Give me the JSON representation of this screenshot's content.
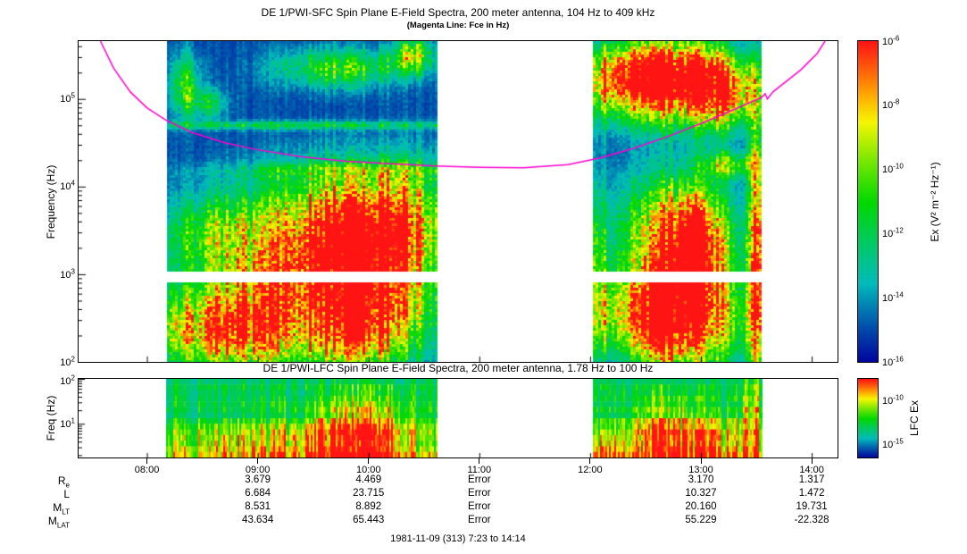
{
  "chart_data": {
    "type": "heatmap",
    "figure": "DE 1 PWI dynamic spectrogram, two stacked panels with colorbars, time ephemeris table and caption",
    "time_range_hours": [
      7.383,
      14.233
    ],
    "x_ticks": [
      "08:00",
      "09:00",
      "10:00",
      "11:00",
      "12:00",
      "13:00",
      "14:00"
    ],
    "x_tick_hours": [
      8,
      9,
      10,
      11,
      12,
      13,
      14
    ],
    "data_segments_hours": [
      [
        8.17,
        10.62
      ],
      [
        12.02,
        13.55
      ]
    ],
    "sfc_panel": {
      "title": "DE 1/PWI-SFC  Spin Plane E-Field Spectra, 200 meter antenna, 104 Hz to 409 kHz",
      "subtitle": "(Magenta Line: Fce in Hz)",
      "ylabel": "Frequency (Hz)",
      "freq_log_range": [
        2.0,
        5.66
      ],
      "ytick_exponents": [
        5,
        4,
        3,
        2
      ],
      "receiver_gap_log": [
        2.9,
        3.02
      ],
      "colorbar": {
        "label": "Ex (V² m⁻² Hz⁻¹)",
        "tick_exponents": [
          -6,
          -8,
          -10,
          -12,
          -14,
          -16
        ]
      },
      "fce_color": "#ff00cc",
      "fce_line_points": [
        [
          7.58,
          5.66
        ],
        [
          7.7,
          5.35
        ],
        [
          7.85,
          5.08
        ],
        [
          8.0,
          4.9
        ],
        [
          8.17,
          4.76
        ],
        [
          8.4,
          4.62
        ],
        [
          8.7,
          4.5
        ],
        [
          9.0,
          4.42
        ],
        [
          9.4,
          4.34
        ],
        [
          9.8,
          4.29
        ],
        [
          10.2,
          4.26
        ],
        [
          10.6,
          4.235
        ],
        [
          11.0,
          4.22
        ],
        [
          11.4,
          4.215
        ],
        [
          11.8,
          4.25
        ],
        [
          12.1,
          4.33
        ],
        [
          12.4,
          4.44
        ],
        [
          12.7,
          4.57
        ],
        [
          13.0,
          4.72
        ],
        [
          13.3,
          4.88
        ],
        [
          13.55,
          5.02
        ],
        [
          13.58,
          5.06
        ],
        [
          13.6,
          5.0
        ],
        [
          13.65,
          5.08
        ],
        [
          13.9,
          5.33
        ],
        [
          14.05,
          5.52
        ],
        [
          14.12,
          5.66
        ]
      ],
      "features": [
        [
          9.3,
          2.45,
          0.85,
          0.42,
          0.55
        ],
        [
          8.65,
          2.35,
          0.38,
          0.3,
          0.5
        ],
        [
          9.95,
          2.45,
          0.3,
          0.38,
          0.62
        ],
        [
          9.9,
          3.35,
          0.32,
          0.4,
          0.88
        ],
        [
          9.35,
          3.25,
          0.45,
          0.45,
          0.6
        ],
        [
          10.35,
          3.45,
          0.22,
          0.5,
          0.6
        ],
        [
          8.55,
          3.45,
          0.3,
          0.35,
          0.38
        ],
        [
          9.8,
          3.95,
          0.55,
          0.35,
          0.3
        ],
        [
          9.4,
          4.7,
          1.3,
          0.035,
          0.3
        ],
        [
          9.9,
          4.18,
          0.9,
          0.07,
          0.2
        ],
        [
          9.75,
          5.35,
          0.4,
          0.16,
          0.45
        ],
        [
          10.4,
          5.5,
          0.12,
          0.14,
          0.55
        ],
        [
          8.35,
          5.15,
          0.1,
          0.25,
          0.4
        ],
        [
          8.55,
          4.95,
          0.12,
          0.12,
          0.3
        ],
        [
          12.35,
          5.25,
          0.28,
          0.28,
          0.72
        ],
        [
          12.85,
          5.25,
          0.3,
          0.3,
          0.62
        ],
        [
          12.7,
          5.15,
          0.65,
          0.33,
          0.45
        ],
        [
          13.25,
          5.05,
          0.18,
          0.28,
          0.5
        ],
        [
          12.75,
          3.5,
          0.42,
          0.45,
          0.48
        ],
        [
          12.9,
          3.25,
          0.18,
          0.4,
          0.65
        ],
        [
          12.65,
          2.5,
          0.16,
          0.38,
          0.6
        ],
        [
          12.95,
          2.45,
          0.42,
          0.38,
          0.55
        ],
        [
          12.25,
          2.55,
          0.2,
          0.33,
          0.42
        ],
        [
          13.28,
          4.25,
          0.18,
          0.1,
          0.45
        ],
        [
          13.5,
          3.2,
          0.05,
          1.1,
          0.7
        ],
        [
          12.06,
          3.0,
          0.04,
          0.8,
          0.3
        ],
        [
          12.8,
          2.9,
          0.55,
          0.8,
          0.25
        ]
      ]
    },
    "lfc_panel": {
      "title": "DE 1/PWI-LFC  Spin Plane E-Field Spectra, 200 meter antenna, 1.78 Hz to 100 Hz",
      "ylabel": "Freq (Hz)",
      "freq_log_range": [
        0.25,
        2.0
      ],
      "ytick_exponents": [
        2,
        1
      ],
      "colorbar": {
        "label": "LFC Ex",
        "tick_exponents": [
          -10,
          -15
        ]
      },
      "background_level": 0.38,
      "features": [
        [
          9.95,
          0.75,
          0.28,
          0.6,
          0.55
        ],
        [
          9.7,
          0.5,
          0.45,
          0.4,
          0.3
        ],
        [
          8.75,
          0.5,
          0.45,
          0.3,
          0.22
        ],
        [
          12.9,
          0.5,
          0.35,
          0.5,
          0.45
        ],
        [
          12.6,
          0.8,
          0.15,
          0.6,
          0.3
        ],
        [
          13.47,
          0.9,
          0.06,
          0.9,
          0.45
        ],
        [
          12.15,
          0.35,
          0.15,
          0.3,
          0.25
        ],
        [
          9.35,
          1.0,
          1.4,
          0.045,
          0.18
        ],
        [
          9.35,
          1.45,
          1.4,
          0.04,
          0.12
        ],
        [
          12.8,
          1.05,
          0.9,
          0.045,
          0.15
        ],
        [
          12.8,
          1.5,
          0.9,
          0.04,
          0.1
        ]
      ]
    },
    "ephemeris": {
      "row_labels": [
        {
          "base": "R",
          "sub": "e"
        },
        {
          "base": "L",
          "sub": ""
        },
        {
          "base": "M",
          "sub": "LT"
        },
        {
          "base": "M",
          "sub": "LAT"
        }
      ],
      "column_hours": [
        9,
        10,
        11,
        13,
        14
      ],
      "rows": [
        [
          "3.679",
          "4.469",
          "Error",
          "3.170",
          "1.317"
        ],
        [
          "6.684",
          "23.715",
          "Error",
          "10.327",
          "1.472"
        ],
        [
          "8.531",
          "8.892",
          "Error",
          "20.160",
          "19.731"
        ],
        [
          "43.634",
          "65.443",
          "Error",
          "55.229",
          "-22.328"
        ]
      ]
    },
    "footer": "1981-11-09 (313) 7:23 to 14:14"
  }
}
